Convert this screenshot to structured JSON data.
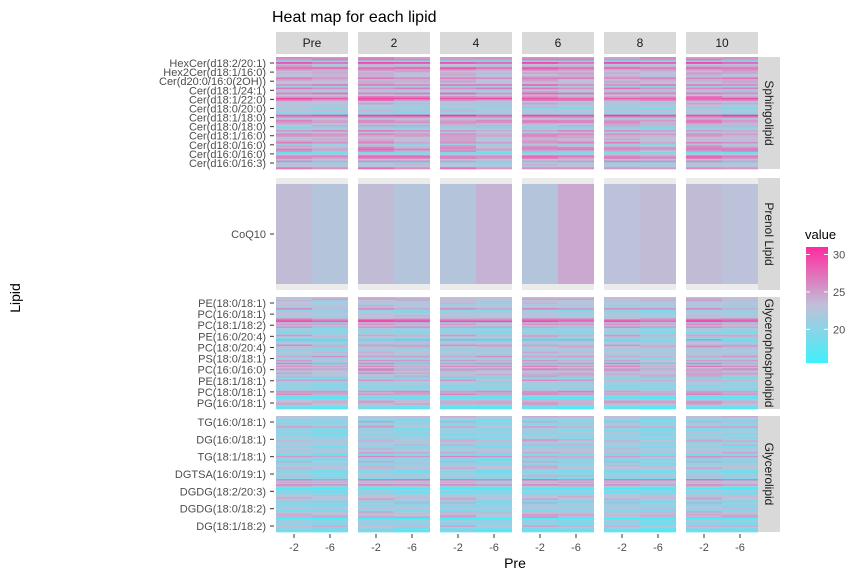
{
  "chart_data": {
    "type": "heatmap",
    "title": "Heat map for each lipid",
    "xlabel": "Pre",
    "ylabel": "Lipid",
    "facet_columns": [
      "Pre",
      "2",
      "4",
      "6",
      "8",
      "10"
    ],
    "facet_rows": [
      "Sphingolipid",
      "Prenol Lipid",
      "Glycerophospholipid",
      "Glycerolipid"
    ],
    "x_categories": [
      "-2",
      "-6"
    ],
    "legend": {
      "title": "value",
      "ticks": [
        20,
        25,
        30
      ],
      "range": [
        15.5,
        31
      ],
      "position": "right"
    },
    "colors": {
      "low": "#3ff0fb",
      "mid": "#c0c0d8",
      "high": "#ff2b9e",
      "strip_bg": "#d9d9d9",
      "panel_bg": "#ebebeb"
    },
    "y_tick_labels": {
      "Sphingolipid": [
        "HexCer(d18:2/20:1)",
        "Hex2Cer(d18:1/16:0)",
        "Cer(d20:0/16:0(2OH))",
        "Cer(d18:1/24:1)",
        "Cer(d18:1/22:0)",
        "Cer(d18:0/20:0)",
        "Cer(d18:1/18:0)",
        "Cer(d18:0/18:0)",
        "Cer(d18:1/16:0)",
        "Cer(d18:0/16:0)",
        "Cer(d16:0/16:0)",
        "Cer(d16:0/16:3)"
      ],
      "Prenol Lipid": [
        "CoQ10"
      ],
      "Glycerophospholipid": [
        "PE(18:0/18:1)",
        "PC(16:0/18:1)",
        "PC(18:1/18:2)",
        "PE(16:0/20:4)",
        "PC(18:0/20:4)",
        "PS(18:0/18:1)",
        "PC(16:0/16:0)",
        "PE(18:1/18:1)",
        "PC(18:0/18:1)",
        "PG(16:0/18:1)"
      ],
      "Glycerolipid": [
        "TG(16:0/18:1)",
        "DG(16:0/18:1)",
        "TG(18:1/18:1)",
        "DGTSA(16:0/19:1)",
        "DGDG(18:2/20:3)",
        "DGDG(18:0/18:2)",
        "DG(18:1/18:2)"
      ]
    },
    "panel_values": {
      "Prenol Lipid": [
        [
          23.5,
          22.5
        ],
        [
          23.5,
          22.5
        ],
        [
          22.5,
          24
        ],
        [
          22.5,
          24.5
        ],
        [
          23,
          23.5
        ],
        [
          23.5,
          23
        ]
      ]
    }
  }
}
